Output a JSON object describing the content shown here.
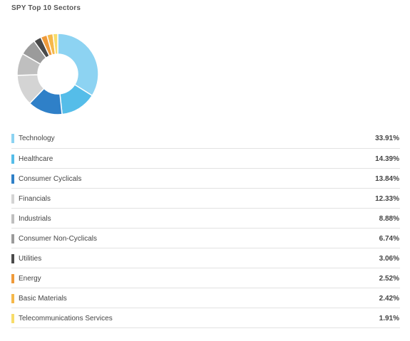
{
  "widget": {
    "title": "SPY Top 10 Sectors"
  },
  "chart_data": {
    "type": "pie",
    "categories": [
      "Technology",
      "Healthcare",
      "Consumer Cyclicals",
      "Financials",
      "Industrials",
      "Consumer Non-Cyclicals",
      "Utilities",
      "Energy",
      "Basic Materials",
      "Telecommunications Services"
    ],
    "values": [
      33.91,
      14.39,
      13.84,
      12.33,
      8.88,
      6.74,
      3.06,
      2.52,
      2.42,
      1.91
    ],
    "colors": [
      "#8dd3f2",
      "#55bde9",
      "#2f80c8",
      "#d4d4d4",
      "#bfbfbf",
      "#9b9b9b",
      "#4a4a4a",
      "#ef9a3a",
      "#f5b84a",
      "#f7dc6a"
    ],
    "donut": true
  },
  "legend": {
    "items": [
      {
        "label": "Technology",
        "value": "33.91%",
        "color": "#8dd3f2"
      },
      {
        "label": "Healthcare",
        "value": "14.39%",
        "color": "#55bde9"
      },
      {
        "label": "Consumer Cyclicals",
        "value": "13.84%",
        "color": "#2f80c8"
      },
      {
        "label": "Financials",
        "value": "12.33%",
        "color": "#d4d4d4"
      },
      {
        "label": "Industrials",
        "value": "8.88%",
        "color": "#bfbfbf"
      },
      {
        "label": "Consumer Non-Cyclicals",
        "value": "6.74%",
        "color": "#9b9b9b"
      },
      {
        "label": "Utilities",
        "value": "3.06%",
        "color": "#4a4a4a"
      },
      {
        "label": "Energy",
        "value": "2.52%",
        "color": "#ef9a3a"
      },
      {
        "label": "Basic Materials",
        "value": "2.42%",
        "color": "#f5b84a"
      },
      {
        "label": "Telecommunications Services",
        "value": "1.91%",
        "color": "#f7dc6a"
      }
    ]
  }
}
